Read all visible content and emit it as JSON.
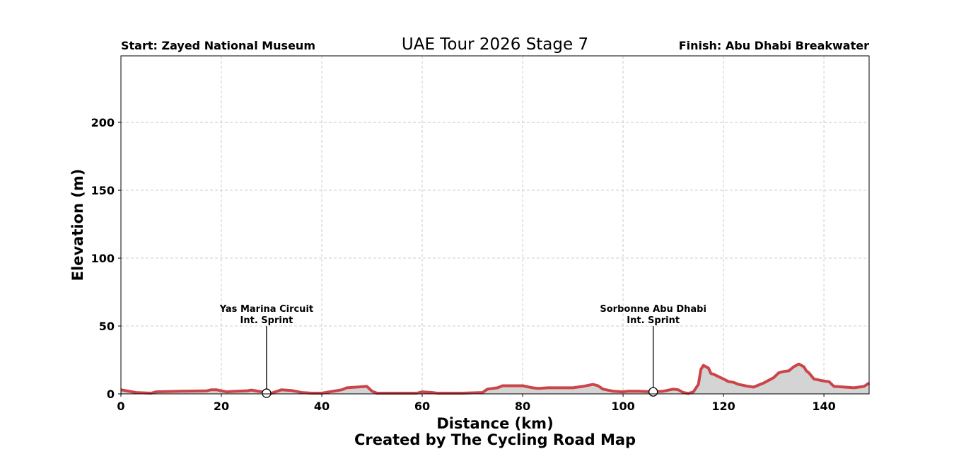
{
  "chart_data": {
    "type": "area",
    "title": "UAE Tour 2026 Stage 7",
    "start_label": "Start: Zayed National Museum",
    "finish_label": "Finish: Abu Dhabi Breakwater",
    "xlabel": "Distance (km)",
    "ylabel": "Elevation (m)",
    "credit": "Created by The Cycling Road Map",
    "xlim": [
      0,
      149
    ],
    "ylim": [
      0,
      249
    ],
    "xticks": [
      0,
      20,
      40,
      60,
      80,
      100,
      120,
      140
    ],
    "yticks": [
      0,
      50,
      100,
      150,
      200
    ],
    "grid": true,
    "line_color": "#cc4449",
    "fill_color": "#d4d4d4",
    "x": [
      0,
      3,
      6,
      7,
      12,
      17,
      18,
      19,
      21,
      23,
      25,
      26,
      28,
      29,
      30,
      32,
      34,
      36,
      38,
      40,
      44,
      45,
      47,
      49,
      50,
      51,
      57,
      59,
      60,
      62,
      63,
      68,
      72,
      73,
      75,
      76,
      80,
      82,
      83,
      85,
      90,
      92,
      94,
      95,
      96,
      98,
      100,
      101,
      103,
      106,
      108,
      110,
      111,
      112,
      113,
      114,
      115,
      115.5,
      116,
      117,
      117.5,
      118,
      120,
      121,
      122,
      123,
      125,
      126,
      128,
      129,
      130,
      131,
      132,
      133,
      134,
      135,
      136,
      136.5,
      137,
      138,
      140,
      141,
      142,
      144,
      146,
      148,
      149
    ],
    "y": [
      3,
      1,
      0.5,
      1.5,
      2,
      2.2,
      3,
      3,
      1.5,
      2,
      2.2,
      2.8,
      1.5,
      0.5,
      0.5,
      3,
      2.5,
      1,
      0.5,
      0.5,
      3,
      4.5,
      5,
      5.5,
      2,
      0.5,
      0.5,
      0.5,
      1.5,
      1,
      0.5,
      0.5,
      1,
      3.5,
      4.5,
      6,
      6,
      4.5,
      4,
      4.5,
      4.5,
      5.5,
      7,
      6,
      3.5,
      2,
      1.5,
      2,
      2,
      1.5,
      2,
      3.5,
      3,
      1,
      0.3,
      1.5,
      7,
      18,
      21,
      19,
      15,
      14.5,
      11,
      9,
      8.5,
      7,
      5.5,
      5,
      8,
      10,
      12,
      15.5,
      16.5,
      17,
      20,
      22,
      20,
      17,
      15.5,
      11,
      9.5,
      9,
      5.5,
      5,
      4.5,
      5.5,
      8
    ],
    "annotations": [
      {
        "km": 29,
        "elevation": 0.5,
        "label_line1": "Yas Marina Circuit",
        "label_line2": "Int. Sprint"
      },
      {
        "km": 106,
        "elevation": 1.5,
        "label_line1": "Sorbonne Abu Dhabi",
        "label_line2": "Int. Sprint"
      }
    ]
  }
}
